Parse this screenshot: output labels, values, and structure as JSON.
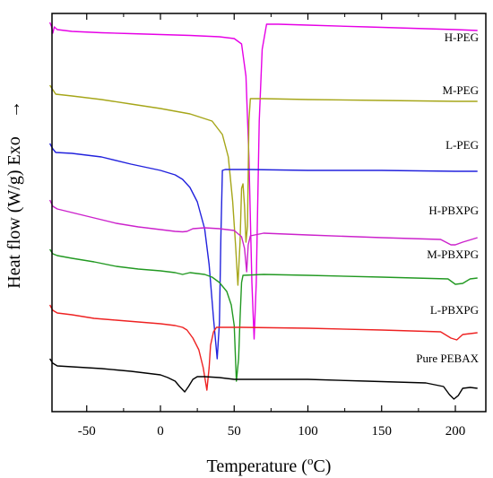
{
  "chart_data": {
    "type": "line",
    "title": "",
    "xlabel_main": "Temperature (",
    "xlabel_unit_sup": "o",
    "xlabel_unit": "C)",
    "ylabel": "Heat flow (W/g)  Exo",
    "ylabel_arrow": "→",
    "xlim": [
      -75,
      220
    ],
    "xticks": [
      -50,
      0,
      50,
      100,
      150,
      200
    ],
    "xtick_labels": [
      "-50",
      "0",
      "50",
      "100",
      "150",
      "200"
    ],
    "grid": false,
    "legend": "none; series names are printed as labels at the right end of each curve",
    "y_units": "arbitrary (curves offset vertically, no y tick labels)",
    "series": [
      {
        "name": "H-PEG",
        "color": "#e600e6",
        "points": [
          [
            -75,
            10
          ],
          [
            -74,
            14
          ],
          [
            -73,
            22
          ],
          [
            -72,
            15
          ],
          [
            -70,
            18
          ],
          [
            -60,
            20
          ],
          [
            -40,
            21.5
          ],
          [
            -20,
            22.5
          ],
          [
            0,
            23.5
          ],
          [
            20,
            24.5
          ],
          [
            40,
            26
          ],
          [
            50,
            28
          ],
          [
            55,
            34
          ],
          [
            58,
            70
          ],
          [
            60,
            160
          ],
          [
            62,
            300
          ],
          [
            63.5,
            363
          ],
          [
            65,
            300
          ],
          [
            67,
            120
          ],
          [
            69,
            40
          ],
          [
            72,
            12
          ],
          [
            80,
            12
          ],
          [
            100,
            13
          ],
          [
            140,
            15
          ],
          [
            180,
            17
          ],
          [
            200,
            18
          ],
          [
            215,
            19
          ]
        ]
      },
      {
        "name": "M-PEG",
        "color": "#a6a619",
        "points": [
          [
            -75,
            80
          ],
          [
            -73,
            85
          ],
          [
            -71,
            90
          ],
          [
            -60,
            92
          ],
          [
            -40,
            96
          ],
          [
            -20,
            101
          ],
          [
            0,
            106
          ],
          [
            20,
            112
          ],
          [
            35,
            120
          ],
          [
            42,
            135
          ],
          [
            46,
            160
          ],
          [
            49,
            210
          ],
          [
            51,
            260
          ],
          [
            52.5,
            303
          ],
          [
            54,
            255
          ],
          [
            55,
            195
          ],
          [
            56,
            190
          ],
          [
            57,
            215
          ],
          [
            58,
            255
          ],
          [
            59,
            237
          ],
          [
            60,
            120
          ],
          [
            61,
            95
          ],
          [
            70,
            95
          ],
          [
            100,
            96
          ],
          [
            150,
            97
          ],
          [
            200,
            98
          ],
          [
            215,
            98
          ]
        ]
      },
      {
        "name": "L-PEG",
        "color": "#2222dd",
        "points": [
          [
            -75,
            145
          ],
          [
            -73,
            151
          ],
          [
            -71,
            155
          ],
          [
            -60,
            156
          ],
          [
            -40,
            160
          ],
          [
            -20,
            168
          ],
          [
            0,
            175
          ],
          [
            10,
            180
          ],
          [
            15,
            185
          ],
          [
            20,
            194
          ],
          [
            25,
            210
          ],
          [
            30,
            240
          ],
          [
            33,
            280
          ],
          [
            36,
            340
          ],
          [
            38.5,
            385
          ],
          [
            40,
            345
          ],
          [
            41,
            250
          ],
          [
            42,
            175
          ],
          [
            44,
            174
          ],
          [
            60,
            174
          ],
          [
            100,
            175
          ],
          [
            150,
            175
          ],
          [
            200,
            176
          ],
          [
            215,
            176
          ]
        ]
      },
      {
        "name": "H-PBXPG",
        "color": "#cc22cc",
        "points": [
          [
            -75,
            208
          ],
          [
            -73,
            215
          ],
          [
            -70,
            218
          ],
          [
            -60,
            222
          ],
          [
            -45,
            228
          ],
          [
            -30,
            234
          ],
          [
            -15,
            238
          ],
          [
            -5,
            240
          ],
          [
            5,
            242
          ],
          [
            10,
            243
          ],
          [
            15,
            243.5
          ],
          [
            18,
            243
          ],
          [
            22,
            240
          ],
          [
            30,
            239
          ],
          [
            40,
            240
          ],
          [
            50,
            242
          ],
          [
            55,
            249
          ],
          [
            57,
            262
          ],
          [
            58.5,
            288
          ],
          [
            59.5,
            258
          ],
          [
            61,
            248
          ],
          [
            70,
            245
          ],
          [
            100,
            247
          ],
          [
            150,
            250
          ],
          [
            190,
            252
          ],
          [
            197,
            258
          ],
          [
            200,
            258
          ],
          [
            205,
            255
          ],
          [
            215,
            250
          ]
        ]
      },
      {
        "name": "M-PBXPG",
        "color": "#229922",
        "points": [
          [
            -75,
            263
          ],
          [
            -73,
            268
          ],
          [
            -70,
            270
          ],
          [
            -60,
            273
          ],
          [
            -45,
            277
          ],
          [
            -30,
            282
          ],
          [
            -15,
            285
          ],
          [
            0,
            287
          ],
          [
            10,
            289
          ],
          [
            15,
            291
          ],
          [
            20,
            289
          ],
          [
            25,
            290
          ],
          [
            30,
            291
          ],
          [
            35,
            294
          ],
          [
            40,
            300
          ],
          [
            45,
            310
          ],
          [
            48,
            325
          ],
          [
            50,
            348
          ],
          [
            51.5,
            410
          ],
          [
            53,
            385
          ],
          [
            54,
            340
          ],
          [
            55,
            300
          ],
          [
            56,
            292
          ],
          [
            70,
            291
          ],
          [
            100,
            292
          ],
          [
            150,
            294
          ],
          [
            195,
            296
          ],
          [
            200,
            302
          ],
          [
            205,
            301
          ],
          [
            210,
            296
          ],
          [
            215,
            295
          ]
        ]
      },
      {
        "name": "L-PBXPG",
        "color": "#ee2222",
        "points": [
          [
            -75,
            325
          ],
          [
            -73,
            331
          ],
          [
            -70,
            334
          ],
          [
            -60,
            336
          ],
          [
            -45,
            340
          ],
          [
            -30,
            342
          ],
          [
            -15,
            344
          ],
          [
            0,
            346
          ],
          [
            10,
            348
          ],
          [
            15,
            350
          ],
          [
            18,
            353
          ],
          [
            22,
            362
          ],
          [
            26,
            375
          ],
          [
            29,
            395
          ],
          [
            31.5,
            420
          ],
          [
            33,
            395
          ],
          [
            34,
            370
          ],
          [
            36,
            355
          ],
          [
            38,
            350
          ],
          [
            55,
            350
          ],
          [
            100,
            351
          ],
          [
            150,
            353
          ],
          [
            190,
            355
          ],
          [
            197,
            362
          ],
          [
            201,
            364
          ],
          [
            205,
            358
          ],
          [
            215,
            356
          ]
        ]
      },
      {
        "name": "Pure PEBAX",
        "color": "#000000",
        "points": [
          [
            -75,
            385
          ],
          [
            -73,
            390
          ],
          [
            -70,
            393
          ],
          [
            -60,
            394
          ],
          [
            -40,
            396
          ],
          [
            -20,
            399
          ],
          [
            -10,
            401
          ],
          [
            0,
            403
          ],
          [
            5,
            406
          ],
          [
            10,
            410
          ],
          [
            13,
            416
          ],
          [
            16.5,
            422
          ],
          [
            19,
            416
          ],
          [
            22,
            408
          ],
          [
            25,
            405
          ],
          [
            30,
            405
          ],
          [
            40,
            406
          ],
          [
            50,
            408
          ],
          [
            70,
            408
          ],
          [
            100,
            408
          ],
          [
            140,
            410
          ],
          [
            180,
            412
          ],
          [
            192,
            416
          ],
          [
            196,
            425
          ],
          [
            199,
            430
          ],
          [
            202,
            426
          ],
          [
            205,
            418
          ],
          [
            210,
            417
          ],
          [
            215,
            418
          ]
        ]
      }
    ]
  }
}
